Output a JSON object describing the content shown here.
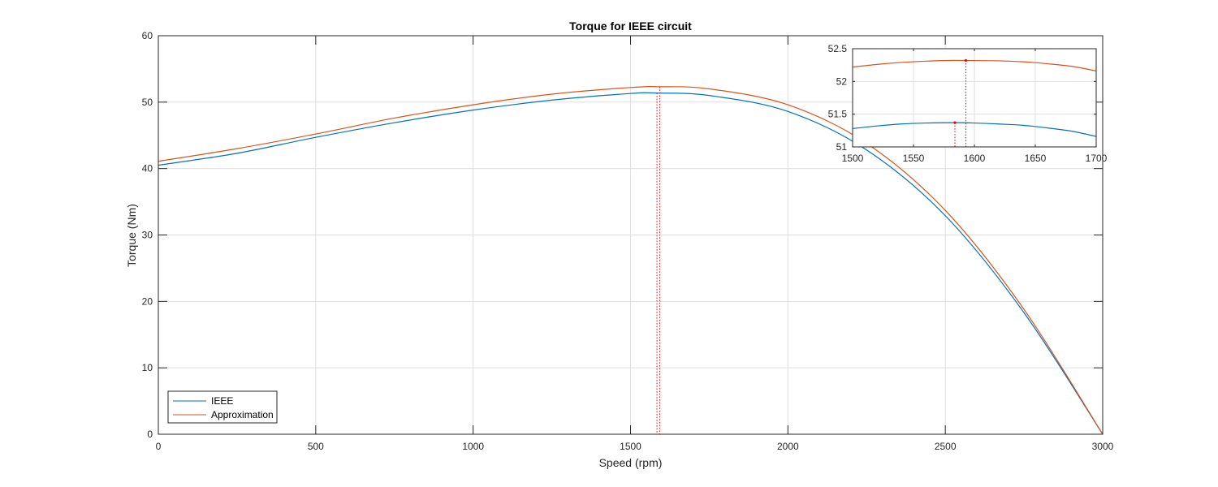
{
  "chart_data": [
    {
      "type": "line",
      "title": "Torque for IEEE circuit",
      "xlabel": "Speed (rpm)",
      "ylabel": "Torque (Nm)",
      "xlim": [
        0,
        3000
      ],
      "ylim": [
        0,
        60
      ],
      "xticks": [
        "0",
        "500",
        "1000",
        "1500",
        "2000",
        "2500",
        "3000"
      ],
      "yticks": [
        "0",
        "10",
        "20",
        "30",
        "40",
        "50",
        "60"
      ],
      "grid": true,
      "legend_position": "bottom-left",
      "series": [
        {
          "name": "IEEE",
          "color": "#0072BD",
          "x": [
            0,
            250,
            500,
            750,
            1000,
            1250,
            1500,
            1584,
            1750,
            2000,
            2250,
            2500,
            2750,
            3000
          ],
          "y": [
            40.5,
            42.3,
            44.7,
            46.9,
            48.8,
            50.3,
            51.3,
            51.37,
            51.0,
            48.6,
            42.8,
            32.9,
            18.3,
            0
          ]
        },
        {
          "name": "Approximation",
          "color": "#D95319",
          "x": [
            0,
            250,
            500,
            750,
            1000,
            1250,
            1500,
            1593,
            1750,
            2000,
            2250,
            2500,
            2750,
            3000
          ],
          "y": [
            41.1,
            43.0,
            45.2,
            47.6,
            49.6,
            51.2,
            52.2,
            52.32,
            52.0,
            49.6,
            43.8,
            33.7,
            18.8,
            0
          ]
        }
      ],
      "markers": [
        {
          "series": "IEEE",
          "x": 1584,
          "y": 51.37,
          "color": "#FF0000",
          "style": "dotted-vertical"
        },
        {
          "series": "Approximation",
          "x": 1593,
          "y": 52.32,
          "color": "#FF0000",
          "style": "dotted-vertical"
        }
      ]
    },
    {
      "type": "line",
      "title": "",
      "xlabel": "",
      "ylabel": "",
      "xlim": [
        1500,
        1700
      ],
      "ylim": [
        51,
        52.5
      ],
      "xticks": [
        "1500",
        "1550",
        "1600",
        "1650",
        "1700"
      ],
      "yticks": [
        "51",
        "51.5",
        "52",
        "52.5"
      ],
      "grid": true,
      "series": [
        {
          "name": "IEEE",
          "color": "#0072BD",
          "x": [
            1500,
            1520,
            1540,
            1560,
            1584,
            1600,
            1620,
            1640,
            1660,
            1680,
            1700
          ],
          "y": [
            51.28,
            51.32,
            51.35,
            51.365,
            51.37,
            51.365,
            51.35,
            51.33,
            51.29,
            51.24,
            51.16
          ]
        },
        {
          "name": "Approximation",
          "color": "#D95319",
          "x": [
            1500,
            1520,
            1540,
            1560,
            1580,
            1593,
            1620,
            1640,
            1660,
            1680,
            1700
          ],
          "y": [
            52.22,
            52.26,
            52.29,
            52.31,
            52.32,
            52.32,
            52.315,
            52.3,
            52.27,
            52.23,
            52.16
          ]
        }
      ],
      "markers": [
        {
          "series": "IEEE",
          "x": 1584,
          "y": 51.37,
          "color": "#FF0000",
          "style": "dotted-vertical"
        },
        {
          "series": "Approximation",
          "x": 1593,
          "y": 52.32,
          "color": "#FF0000",
          "style": "dotted-vertical"
        }
      ]
    }
  ]
}
